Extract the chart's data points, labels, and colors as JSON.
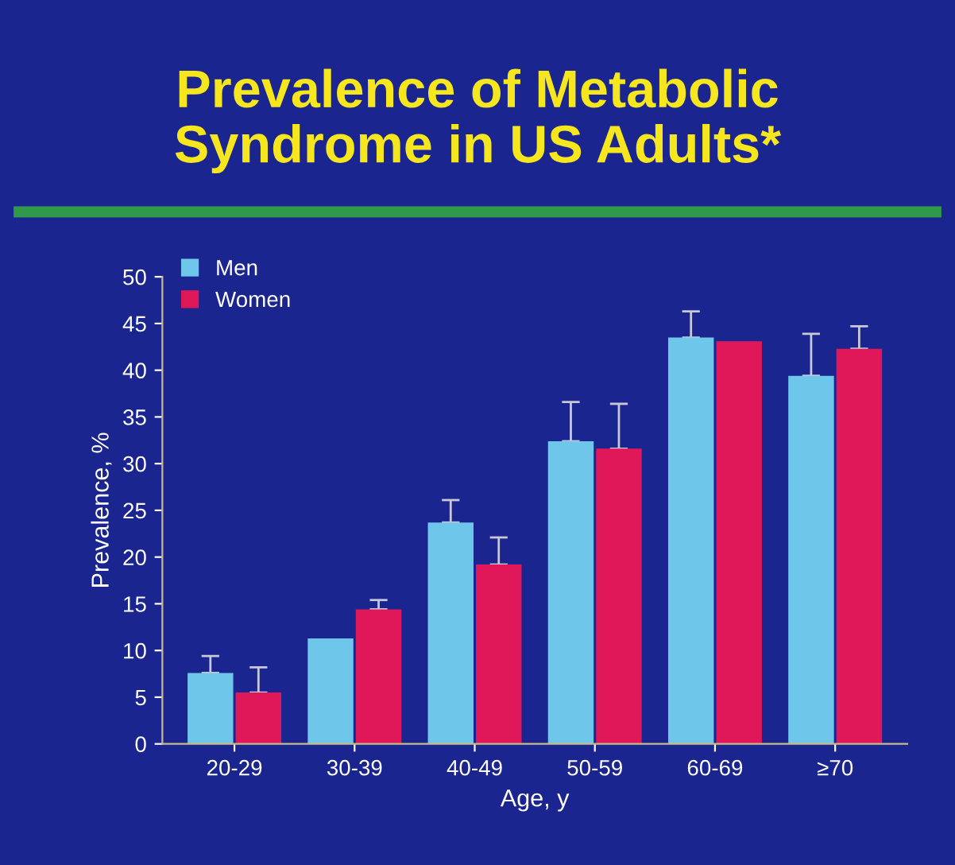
{
  "chart_data": {
    "type": "bar",
    "title": "Prevalence of Metabolic\nSyndrome in US Adults*",
    "xlabel": "Age, y",
    "ylabel": "Prevalence, %",
    "categories": [
      "20-29",
      "30-39",
      "40-49",
      "50-59",
      "60-69",
      "≥70"
    ],
    "series": [
      {
        "name": "Men",
        "color": "#6ec6ea",
        "values": [
          7.6,
          11.3,
          23.7,
          32.4,
          43.5,
          39.4
        ],
        "errors": [
          [
            7.6,
            9.4
          ],
          null,
          [
            23.7,
            26.1
          ],
          [
            32.4,
            36.6
          ],
          [
            43.5,
            46.3
          ],
          [
            39.4,
            43.9
          ]
        ]
      },
      {
        "name": "Women",
        "color": "#e0185a",
        "values": [
          5.5,
          14.4,
          19.2,
          31.6,
          43.1,
          42.3
        ],
        "errors": [
          [
            5.5,
            8.2
          ],
          [
            14.4,
            15.4
          ],
          [
            19.2,
            22.1
          ],
          [
            31.6,
            36.4
          ],
          null,
          [
            42.3,
            44.7
          ]
        ]
      }
    ],
    "ylim": [
      0,
      50
    ],
    "yticks": [
      0,
      5,
      10,
      15,
      20,
      25,
      30,
      35,
      40,
      45,
      50
    ],
    "grid": false,
    "legend": "top left"
  }
}
